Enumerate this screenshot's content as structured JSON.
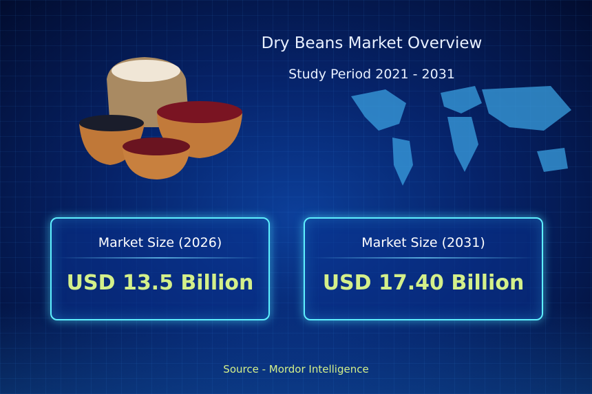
{
  "title": "Dry Beans Market Overview",
  "subtitle": "Study Period 2021 - 2031",
  "cards": [
    {
      "label": "Market Size (2026)",
      "value": "USD 13.5 Billion"
    },
    {
      "label": "Market Size (2031)",
      "value": "USD 17.40 Billion"
    }
  ],
  "source": "Source  - Mordor Intelligence",
  "colors": {
    "background": "#06236a",
    "accent_value": "#d4f08a",
    "card_border": "#5ff0ff"
  }
}
